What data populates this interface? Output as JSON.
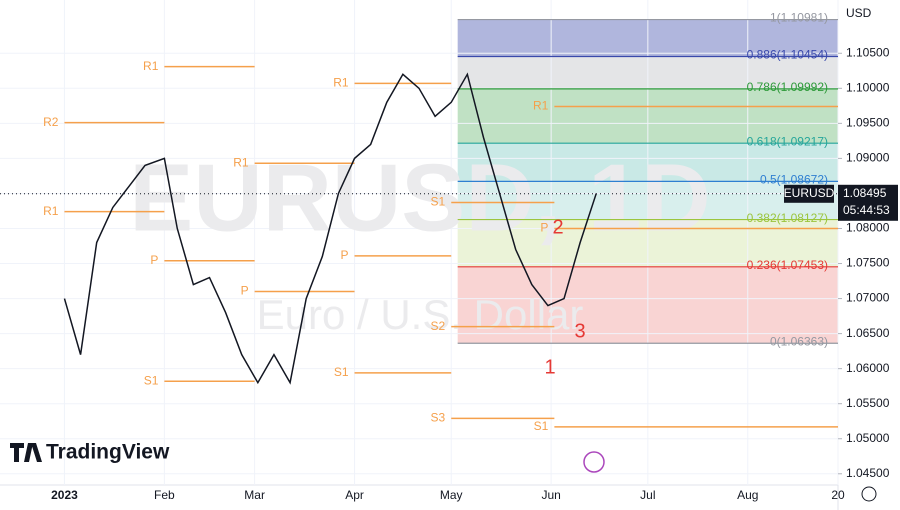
{
  "chart_data": {
    "type": "line",
    "currency": "USD",
    "brand": "TradingView",
    "watermark_symbol": "EURUSD, 1D",
    "watermark_description": "Euro / U.S. Dollar",
    "xlim": [
      -20,
      240
    ],
    "ylim": [
      1.0434,
      1.1126
    ],
    "xticks": [
      {
        "value": 0,
        "label": "2023"
      },
      {
        "value": 31,
        "label": "Feb"
      },
      {
        "value": 59,
        "label": "Mar"
      },
      {
        "value": 90,
        "label": "Apr"
      },
      {
        "value": 120,
        "label": "May"
      },
      {
        "value": 151,
        "label": "Jun"
      },
      {
        "value": 181,
        "label": "Jul"
      },
      {
        "value": 212,
        "label": "Aug"
      },
      {
        "value": 240,
        "label": "20"
      }
    ],
    "yticks": [
      {
        "value": 1.105,
        "label": "1.10500"
      },
      {
        "value": 1.1,
        "label": "1.10000"
      },
      {
        "value": 1.095,
        "label": "1.09500"
      },
      {
        "value": 1.09,
        "label": "1.09000"
      },
      {
        "value": 1.085,
        "label": "1.08500"
      },
      {
        "value": 1.08,
        "label": "1.08000"
      },
      {
        "value": 1.075,
        "label": "1.07500"
      },
      {
        "value": 1.07,
        "label": "1.07000"
      },
      {
        "value": 1.065,
        "label": "1.06500"
      },
      {
        "value": 1.06,
        "label": "1.06000"
      },
      {
        "value": 1.055,
        "label": "1.05500"
      },
      {
        "value": 1.05,
        "label": "1.05000"
      },
      {
        "value": 1.045,
        "label": "1.04500"
      }
    ],
    "x": [
      0,
      5,
      10,
      15,
      20,
      25,
      31,
      35,
      40,
      45,
      50,
      55,
      60,
      65,
      70,
      75,
      80,
      85,
      90,
      95,
      100,
      105,
      110,
      115,
      120,
      125,
      130,
      135,
      140,
      145,
      150,
      155,
      160,
      165
    ],
    "series": [
      {
        "name": "EURUSD",
        "color": "#131722",
        "values": [
          1.07,
          1.062,
          1.078,
          1.083,
          1.086,
          1.089,
          1.09,
          1.08,
          1.072,
          1.073,
          1.068,
          1.062,
          1.058,
          1.062,
          1.058,
          1.07,
          1.076,
          1.085,
          1.09,
          1.092,
          1.098,
          1.102,
          1.1,
          1.096,
          1.098,
          1.102,
          1.093,
          1.085,
          1.077,
          1.072,
          1.069,
          1.07,
          1.078,
          1.085
        ]
      }
    ],
    "last_price": {
      "value": 1.08495,
      "label": "1.08495"
    },
    "countdown": "05:44:53",
    "fib_range": [
      122,
      240
    ],
    "fib_levels": [
      {
        "value": 1.10981,
        "label": "1(1.10981)",
        "color": "#9598a1"
      },
      {
        "value": 1.10454,
        "label": "0.886(1.10454)",
        "color": "#3949ab"
      },
      {
        "value": 1.09992,
        "label": "0.786(1.09992)",
        "color": "#2e9a3a"
      },
      {
        "value": 1.09217,
        "label": "0.618(1.09217)",
        "color": "#26a69a"
      },
      {
        "value": 1.08672,
        "label": "0.5(1.08672)",
        "color": "#2f7fd1"
      },
      {
        "value": 1.08127,
        "label": "0.382(1.08127)",
        "color": "#9bc53d"
      },
      {
        "value": 1.07453,
        "label": "0.236(1.07453)",
        "color": "#e53935"
      },
      {
        "value": 1.06363,
        "label": "0(1.06363)",
        "color": "#9598a1"
      }
    ],
    "pivots": [
      {
        "label": "R1",
        "value": 1.1031,
        "x": [
          31,
          59
        ]
      },
      {
        "label": "R2",
        "value": 1.0951,
        "x": [
          0,
          31
        ]
      },
      {
        "label": "R1",
        "value": 1.0824,
        "x": [
          0,
          31
        ]
      },
      {
        "label": "P",
        "value": 1.0754,
        "x": [
          31,
          59
        ]
      },
      {
        "label": "S1",
        "value": 1.0582,
        "x": [
          31,
          59
        ]
      },
      {
        "label": "R1",
        "value": 1.0893,
        "x": [
          59,
          90
        ]
      },
      {
        "label": "P",
        "value": 1.071,
        "x": [
          59,
          90
        ]
      },
      {
        "label": "R1",
        "value": 1.1007,
        "x": [
          90,
          120
        ]
      },
      {
        "label": "P",
        "value": 1.0761,
        "x": [
          90,
          120
        ]
      },
      {
        "label": "S1",
        "value": 1.0594,
        "x": [
          90,
          120
        ]
      },
      {
        "label": "S1",
        "value": 1.0837,
        "x": [
          120,
          152
        ]
      },
      {
        "label": "S2",
        "value": 1.066,
        "x": [
          120,
          152
        ]
      },
      {
        "label": "S3",
        "value": 1.0529,
        "x": [
          120,
          152
        ]
      },
      {
        "label": "R1",
        "value": 1.0974,
        "x": [
          152,
          240
        ]
      },
      {
        "label": "P",
        "value": 1.08,
        "x": [
          152,
          240
        ]
      },
      {
        "label": "S1",
        "value": 1.0517,
        "x": [
          152,
          240
        ]
      }
    ],
    "wave_labels": [
      "1",
      "2",
      "3"
    ]
  }
}
